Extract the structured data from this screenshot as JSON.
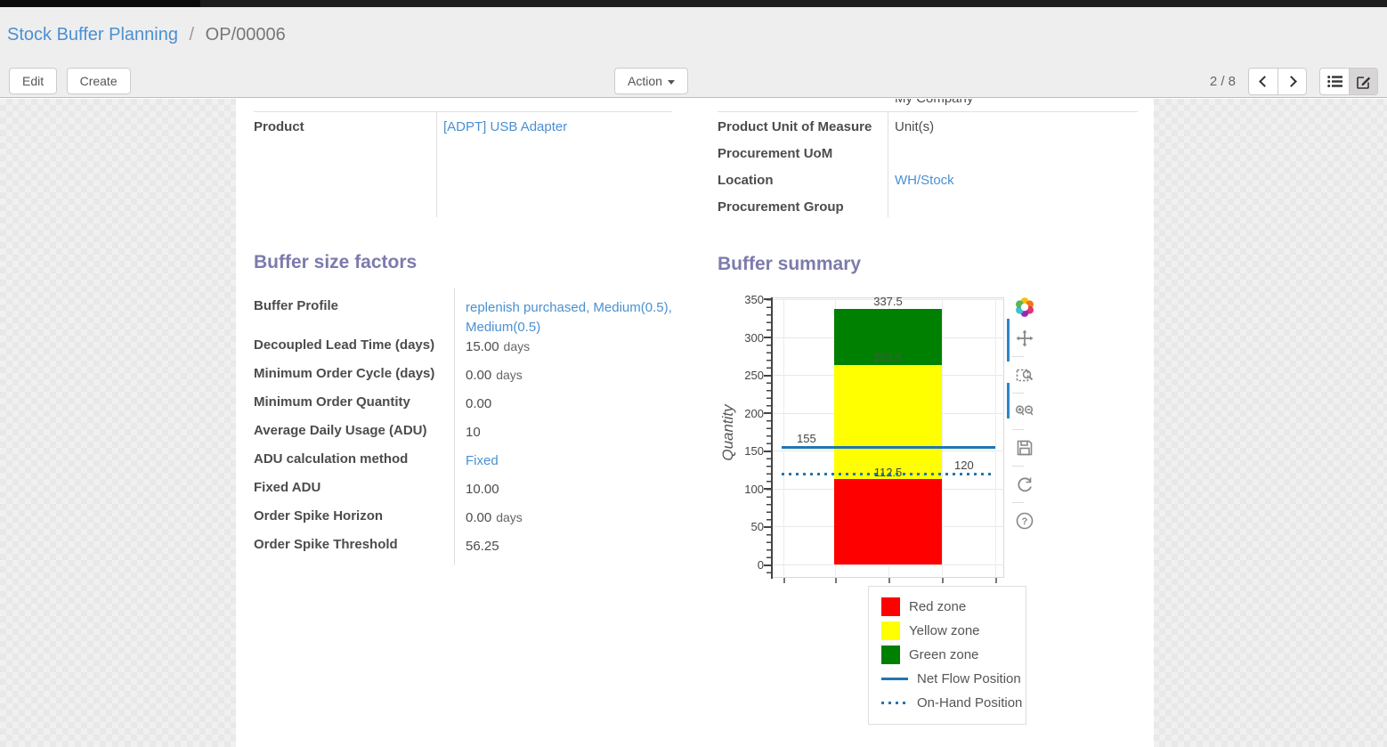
{
  "navbar": {
    "note": "top-apps-bar"
  },
  "breadcrumb": {
    "parent": "Stock Buffer Planning",
    "separator": "/",
    "current": "OP/00006"
  },
  "control_panel": {
    "edit_label": "Edit",
    "create_label": "Create",
    "action_label": "Action",
    "pager": "2 / 8",
    "icons": [
      "prev-chevron-icon",
      "next-chevron-icon",
      "list-view-icon",
      "form-view-icon"
    ]
  },
  "record": {
    "clipped_value_left": "",
    "clipped_value_right": "My Company",
    "fields_left": [
      {
        "label": "Product",
        "value": "[ADPT] USB Adapter",
        "link": true
      }
    ],
    "fields_right": [
      {
        "label": "Product Unit of Measure",
        "value": "Unit(s)",
        "link": false
      },
      {
        "label": "Procurement UoM",
        "value": "",
        "link": false
      },
      {
        "label": "Location",
        "value": "WH/Stock",
        "link": true
      },
      {
        "label": "Procurement Group",
        "value": "",
        "link": false
      }
    ]
  },
  "buffer_factors": {
    "title": "Buffer size factors",
    "rows": [
      {
        "label": "Buffer Profile",
        "value": "replenish purchased, Medium(0.5), Medium(0.5)",
        "unit": "",
        "link": true
      },
      {
        "label": "Decoupled Lead Time (days)",
        "value": "15.00",
        "unit": "days",
        "link": false
      },
      {
        "label": "Minimum Order Cycle (days)",
        "value": "0.00",
        "unit": "days",
        "link": false
      },
      {
        "label": "Minimum Order Quantity",
        "value": "0.00",
        "unit": "",
        "link": false
      },
      {
        "label": "Average Daily Usage (ADU)",
        "value": "10",
        "unit": "",
        "link": false
      },
      {
        "label": "ADU calculation method",
        "value": "Fixed",
        "unit": "",
        "link": true
      },
      {
        "label": "Fixed ADU",
        "value": "10.00",
        "unit": "",
        "link": false
      },
      {
        "label": "Order Spike Horizon",
        "value": "0.00",
        "unit": "days",
        "link": false
      },
      {
        "label": "Order Spike Threshold",
        "value": "56.25",
        "unit": "",
        "link": false
      }
    ]
  },
  "buffer_summary": {
    "title": "Buffer summary",
    "modebar_icons": [
      "plotly-logo-icon",
      "pan-icon",
      "box-zoom-icon",
      "zoom-in-out-icon",
      "save-icon",
      "reset-axes-icon",
      "help-icon"
    ]
  },
  "chart_data": {
    "type": "bar",
    "title": "Buffer summary",
    "xlabel": "",
    "ylabel": "Quantity",
    "ylim": [
      0,
      350
    ],
    "y_ticks": [
      0,
      50,
      100,
      150,
      200,
      250,
      300,
      350
    ],
    "grid": true,
    "legend_position": "bottom-right",
    "zones": [
      {
        "name": "Red zone",
        "from": 0,
        "to": 112.5,
        "color": "#ff0000"
      },
      {
        "name": "Yellow zone",
        "from": 112.5,
        "to": 262.5,
        "color": "#ffff00"
      },
      {
        "name": "Green zone",
        "from": 262.5,
        "to": 337.5,
        "color": "#008000"
      }
    ],
    "lines": [
      {
        "name": "Net Flow Position",
        "value": 155,
        "style": "solid",
        "color": "#1f77b4",
        "label_side": "left"
      },
      {
        "name": "On-Hand Position",
        "value": 120,
        "style": "dotted",
        "color": "#1f77b4",
        "label_side": "right"
      }
    ],
    "bar_annotations": [
      337.5,
      262.5,
      112.5
    ],
    "legend": [
      "Red zone",
      "Yellow zone",
      "Green zone",
      "Net Flow Position",
      "On-Hand Position"
    ]
  }
}
